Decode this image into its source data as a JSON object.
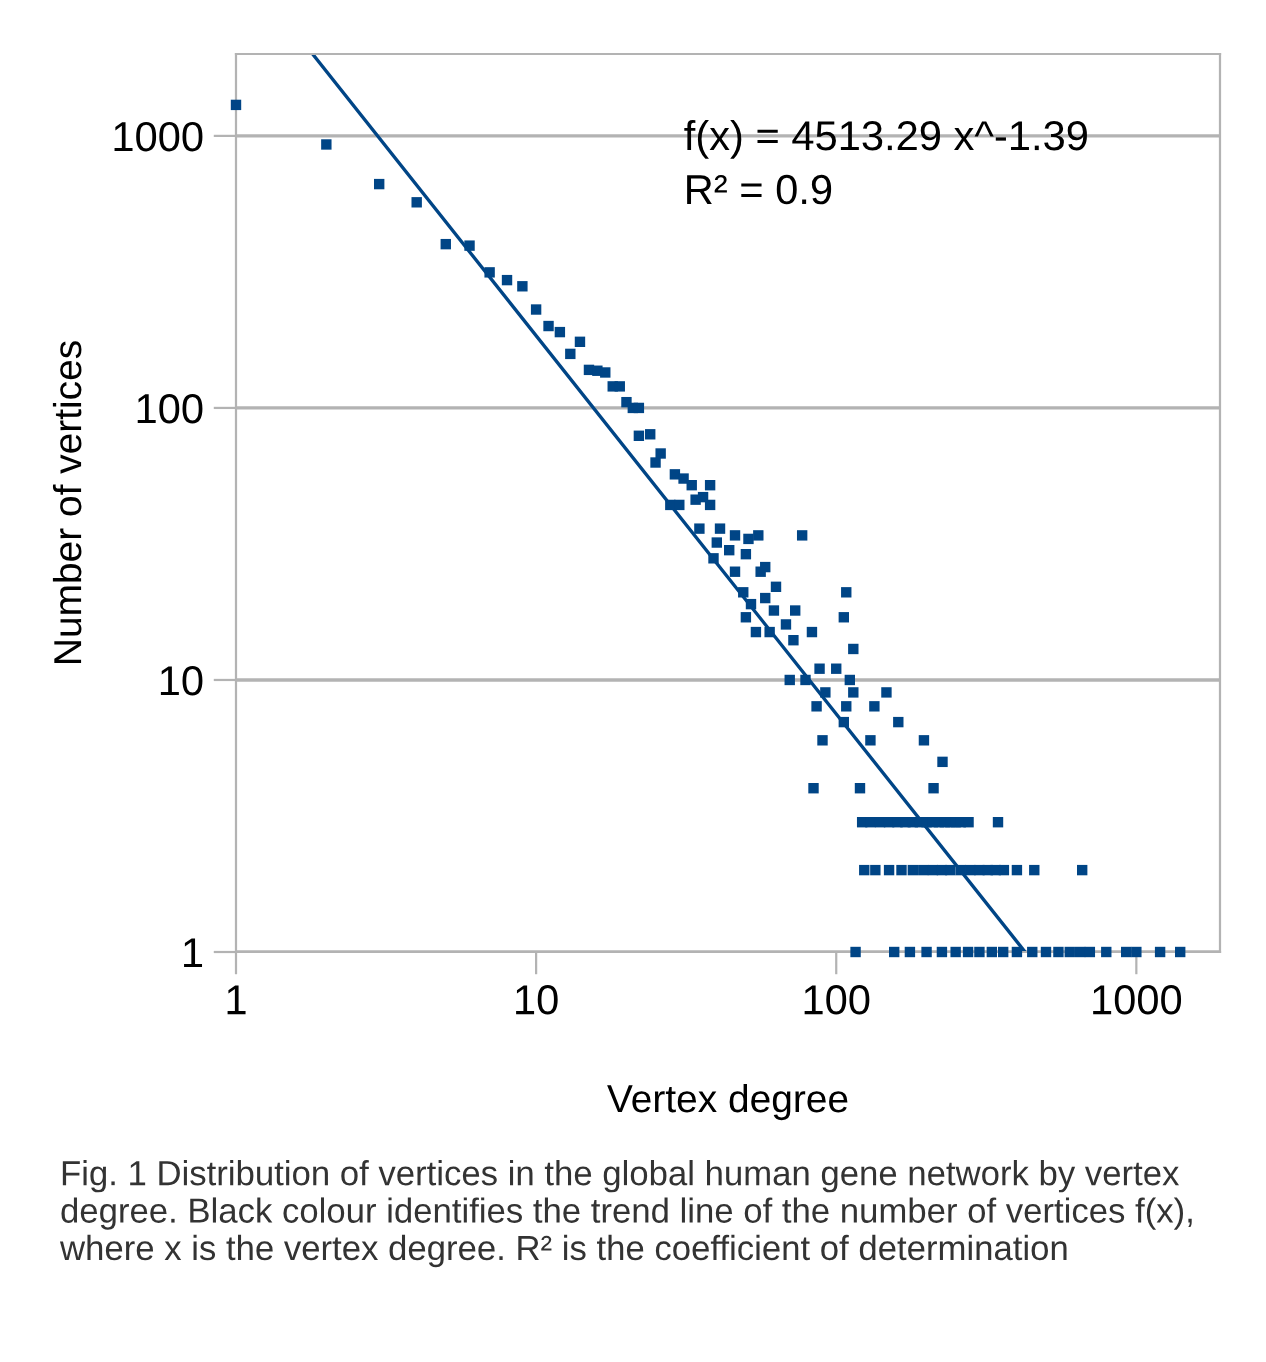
{
  "chart_data": {
    "type": "scatter",
    "xlabel": "Vertex degree",
    "ylabel": "Number of vertices",
    "log": "xy",
    "xlim": [
      1,
      1900
    ],
    "ylim": [
      1,
      2000
    ],
    "xticks": [
      1,
      10,
      100,
      1000
    ],
    "yticks": [
      1,
      10,
      100,
      1000
    ],
    "grid": "y",
    "annotations": [
      "f(x) = 4513.29 x^-1.39",
      "R² = 0.9",
      "Fig. 1 Distribution of vertices in the global human gene network by vertex degree. Black colour identifies the trend line of the number of vertices f(x), where x is the vertex degree. R² is the coefficient of determination"
    ],
    "series": [
      {
        "marker": "square",
        "color": "#004586",
        "x": [
          1,
          2,
          3,
          4,
          5,
          6,
          7,
          8,
          9,
          10,
          11,
          12,
          13,
          14,
          15,
          16,
          17,
          18,
          19,
          20,
          21,
          22,
          22,
          24,
          25,
          26,
          29,
          31,
          28,
          30,
          33,
          38,
          34,
          36,
          38,
          35,
          41,
          46,
          55,
          51,
          40,
          44,
          39,
          50,
          46,
          56,
          58,
          77,
          63,
          49,
          58,
          52,
          50,
          54,
          62,
          73,
          68,
          60,
          83,
          72,
          108,
          106,
          114,
          88,
          100,
          70,
          79,
          111,
          92,
          114,
          147,
          86,
          108,
          134,
          106,
          161,
          90,
          130,
          196,
          226,
          84,
          120,
          211,
          122,
          130,
          140,
          150,
          160,
          170,
          180,
          190,
          200,
          210,
          220,
          230,
          240,
          250,
          260,
          276,
          346,
          124,
          135,
          150,
          165,
          180,
          195,
          210,
          225,
          240,
          260,
          280,
          300,
          320,
          340,
          362,
          400,
          457,
          660,
          116,
          156,
          176,
          200,
          225,
          250,
          275,
          300,
          330,
          360,
          400,
          450,
          500,
          550,
          600,
          650,
          700,
          794,
          925,
          1000,
          1200,
          1400
        ],
        "values": [
          1300,
          930,
          665,
          570,
          400,
          395,
          315,
          295,
          280,
          230,
          200,
          190,
          158,
          175,
          138,
          137,
          135,
          120,
          120,
          105,
          100,
          100,
          79,
          80,
          63,
          68,
          57,
          55,
          44,
          44,
          52,
          52,
          46,
          47,
          44,
          36,
          36,
          34,
          34,
          33,
          32,
          30,
          28,
          29,
          25,
          25,
          26,
          34,
          22,
          21,
          20,
          19,
          17,
          15,
          18,
          18,
          16,
          15,
          15,
          14,
          21,
          17,
          13,
          11,
          11,
          10,
          10,
          10,
          9,
          9,
          9,
          8,
          8,
          8,
          7,
          7,
          6,
          6,
          6,
          5,
          4,
          4,
          4,
          3,
          3,
          3,
          3,
          3,
          3,
          3,
          3,
          3,
          3,
          3,
          3,
          3,
          3,
          3,
          3,
          3,
          2,
          2,
          2,
          2,
          2,
          2,
          2,
          2,
          2,
          2,
          2,
          2,
          2,
          2,
          2,
          2,
          2,
          2,
          1,
          1,
          1,
          1,
          1,
          1,
          1,
          1,
          1,
          1,
          1,
          1,
          1,
          1,
          1,
          1,
          1,
          1,
          1,
          1,
          1,
          1
        ]
      },
      {
        "type": "line",
        "color": "#004586",
        "x": [
          1.8,
          426
        ],
        "values": [
          2000,
          1
        ]
      }
    ]
  }
}
